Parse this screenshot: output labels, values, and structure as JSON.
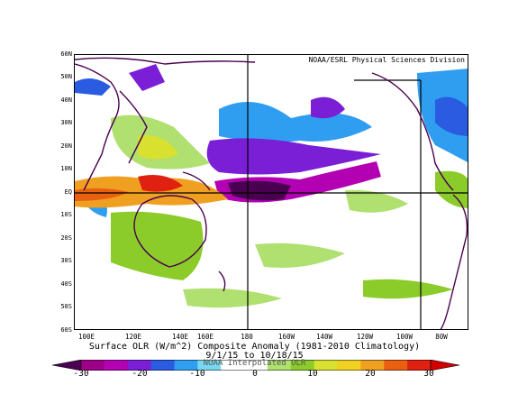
{
  "map": {
    "credit": "NOAA/ESRL Physical Sciences Division",
    "lat_labels": [
      "60N",
      "50N",
      "40N",
      "30N",
      "20N",
      "10N",
      "EQ",
      "10S",
      "20S",
      "30S",
      "40S",
      "50S",
      "60S"
    ],
    "lon_labels": [
      "100E",
      "120E",
      "140E",
      "160E",
      "180",
      "160W",
      "140W",
      "120W",
      "100W",
      "80W"
    ],
    "title_line1": "Surface OLR (W/m^2) Composite Anomaly (1981-2010 Climatology)",
    "title_line2": "9/1/15  to 10/18/15",
    "watermark": "NOAA Interpolated OLR",
    "colorbar": {
      "labels": [
        "-30",
        "-20",
        "-10",
        "0",
        "10",
        "20",
        "30"
      ],
      "colors": [
        "#9e0089",
        "#b300b3",
        "#7a1fd6",
        "#2a5be0",
        "#2f9ef0",
        "#78d7f0",
        "#ffffff",
        "#ffffff",
        "#b0e070",
        "#8ccc2a",
        "#d8e030",
        "#f0d020",
        "#f0a020",
        "#e86010",
        "#e02010"
      ],
      "extend_low": "#4a0050",
      "extend_high": "#d00000"
    }
  }
}
